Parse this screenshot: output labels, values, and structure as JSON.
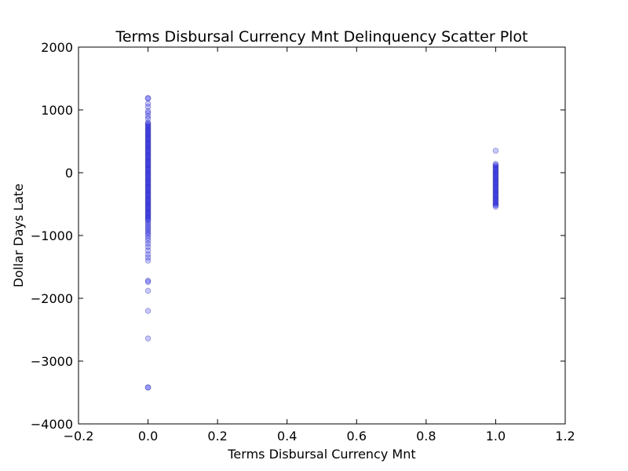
{
  "chart_data": {
    "type": "scatter",
    "title": "Terms Disbursal Currency Mnt Delinquency Scatter Plot",
    "xlabel": "Terms Disbursal Currency Mnt",
    "ylabel": "Dollar Days Late",
    "xlim": [
      -0.2,
      1.2
    ],
    "ylim": [
      -4000,
      2000
    ],
    "xticks": [
      -0.2,
      0.0,
      0.2,
      0.4,
      0.6,
      0.8,
      1.0,
      1.2
    ],
    "xtick_labels": [
      "−0.2",
      "0.0",
      "0.2",
      "0.4",
      "0.6",
      "0.8",
      "1.0",
      "1.2"
    ],
    "yticks": [
      2000,
      1000,
      0,
      -1000,
      -2000,
      -3000,
      -4000
    ],
    "ytick_labels": [
      "2000",
      "1000",
      "0",
      "−1000",
      "−2000",
      "−3000",
      "−4000"
    ],
    "grid": false,
    "marker_color": "#0000ff",
    "series": [
      {
        "x_value": 0.0,
        "y": [
          1190,
          1180,
          1100,
          1050,
          980,
          950,
          900,
          860,
          800,
          780,
          760,
          740,
          720,
          700,
          680,
          660,
          640,
          620,
          600,
          580,
          560,
          540,
          520,
          500,
          480,
          460,
          440,
          420,
          400,
          380,
          360,
          340,
          320,
          300,
          280,
          260,
          240,
          220,
          200,
          180,
          160,
          140,
          120,
          100,
          80,
          60,
          40,
          20,
          0,
          -20,
          -40,
          -60,
          -80,
          -100,
          -120,
          -140,
          -160,
          -180,
          -200,
          -220,
          -240,
          -260,
          -280,
          -300,
          -320,
          -340,
          -360,
          -380,
          -400,
          -420,
          -440,
          -460,
          -480,
          -500,
          -520,
          -540,
          -560,
          -580,
          -600,
          -620,
          -640,
          -660,
          -680,
          -700,
          -720,
          -740,
          -760,
          -790,
          -820,
          -850,
          -880,
          -910,
          -940,
          -970,
          -1000,
          -1040,
          -1080,
          -1130,
          -1180,
          -1240,
          -1300,
          -1350,
          -1400,
          -1720,
          -1740,
          -1880,
          -2200,
          -2640,
          -3420,
          -3420
        ]
      },
      {
        "x_value": 1.0,
        "y": [
          350,
          140,
          120,
          100,
          80,
          60,
          40,
          20,
          0,
          -20,
          -40,
          -60,
          -80,
          -100,
          -120,
          -140,
          -160,
          -180,
          -200,
          -220,
          -240,
          -260,
          -280,
          -300,
          -320,
          -340,
          -360,
          -380,
          -400,
          -420,
          -440,
          -460,
          -480,
          -500,
          -520,
          -540
        ]
      }
    ]
  }
}
